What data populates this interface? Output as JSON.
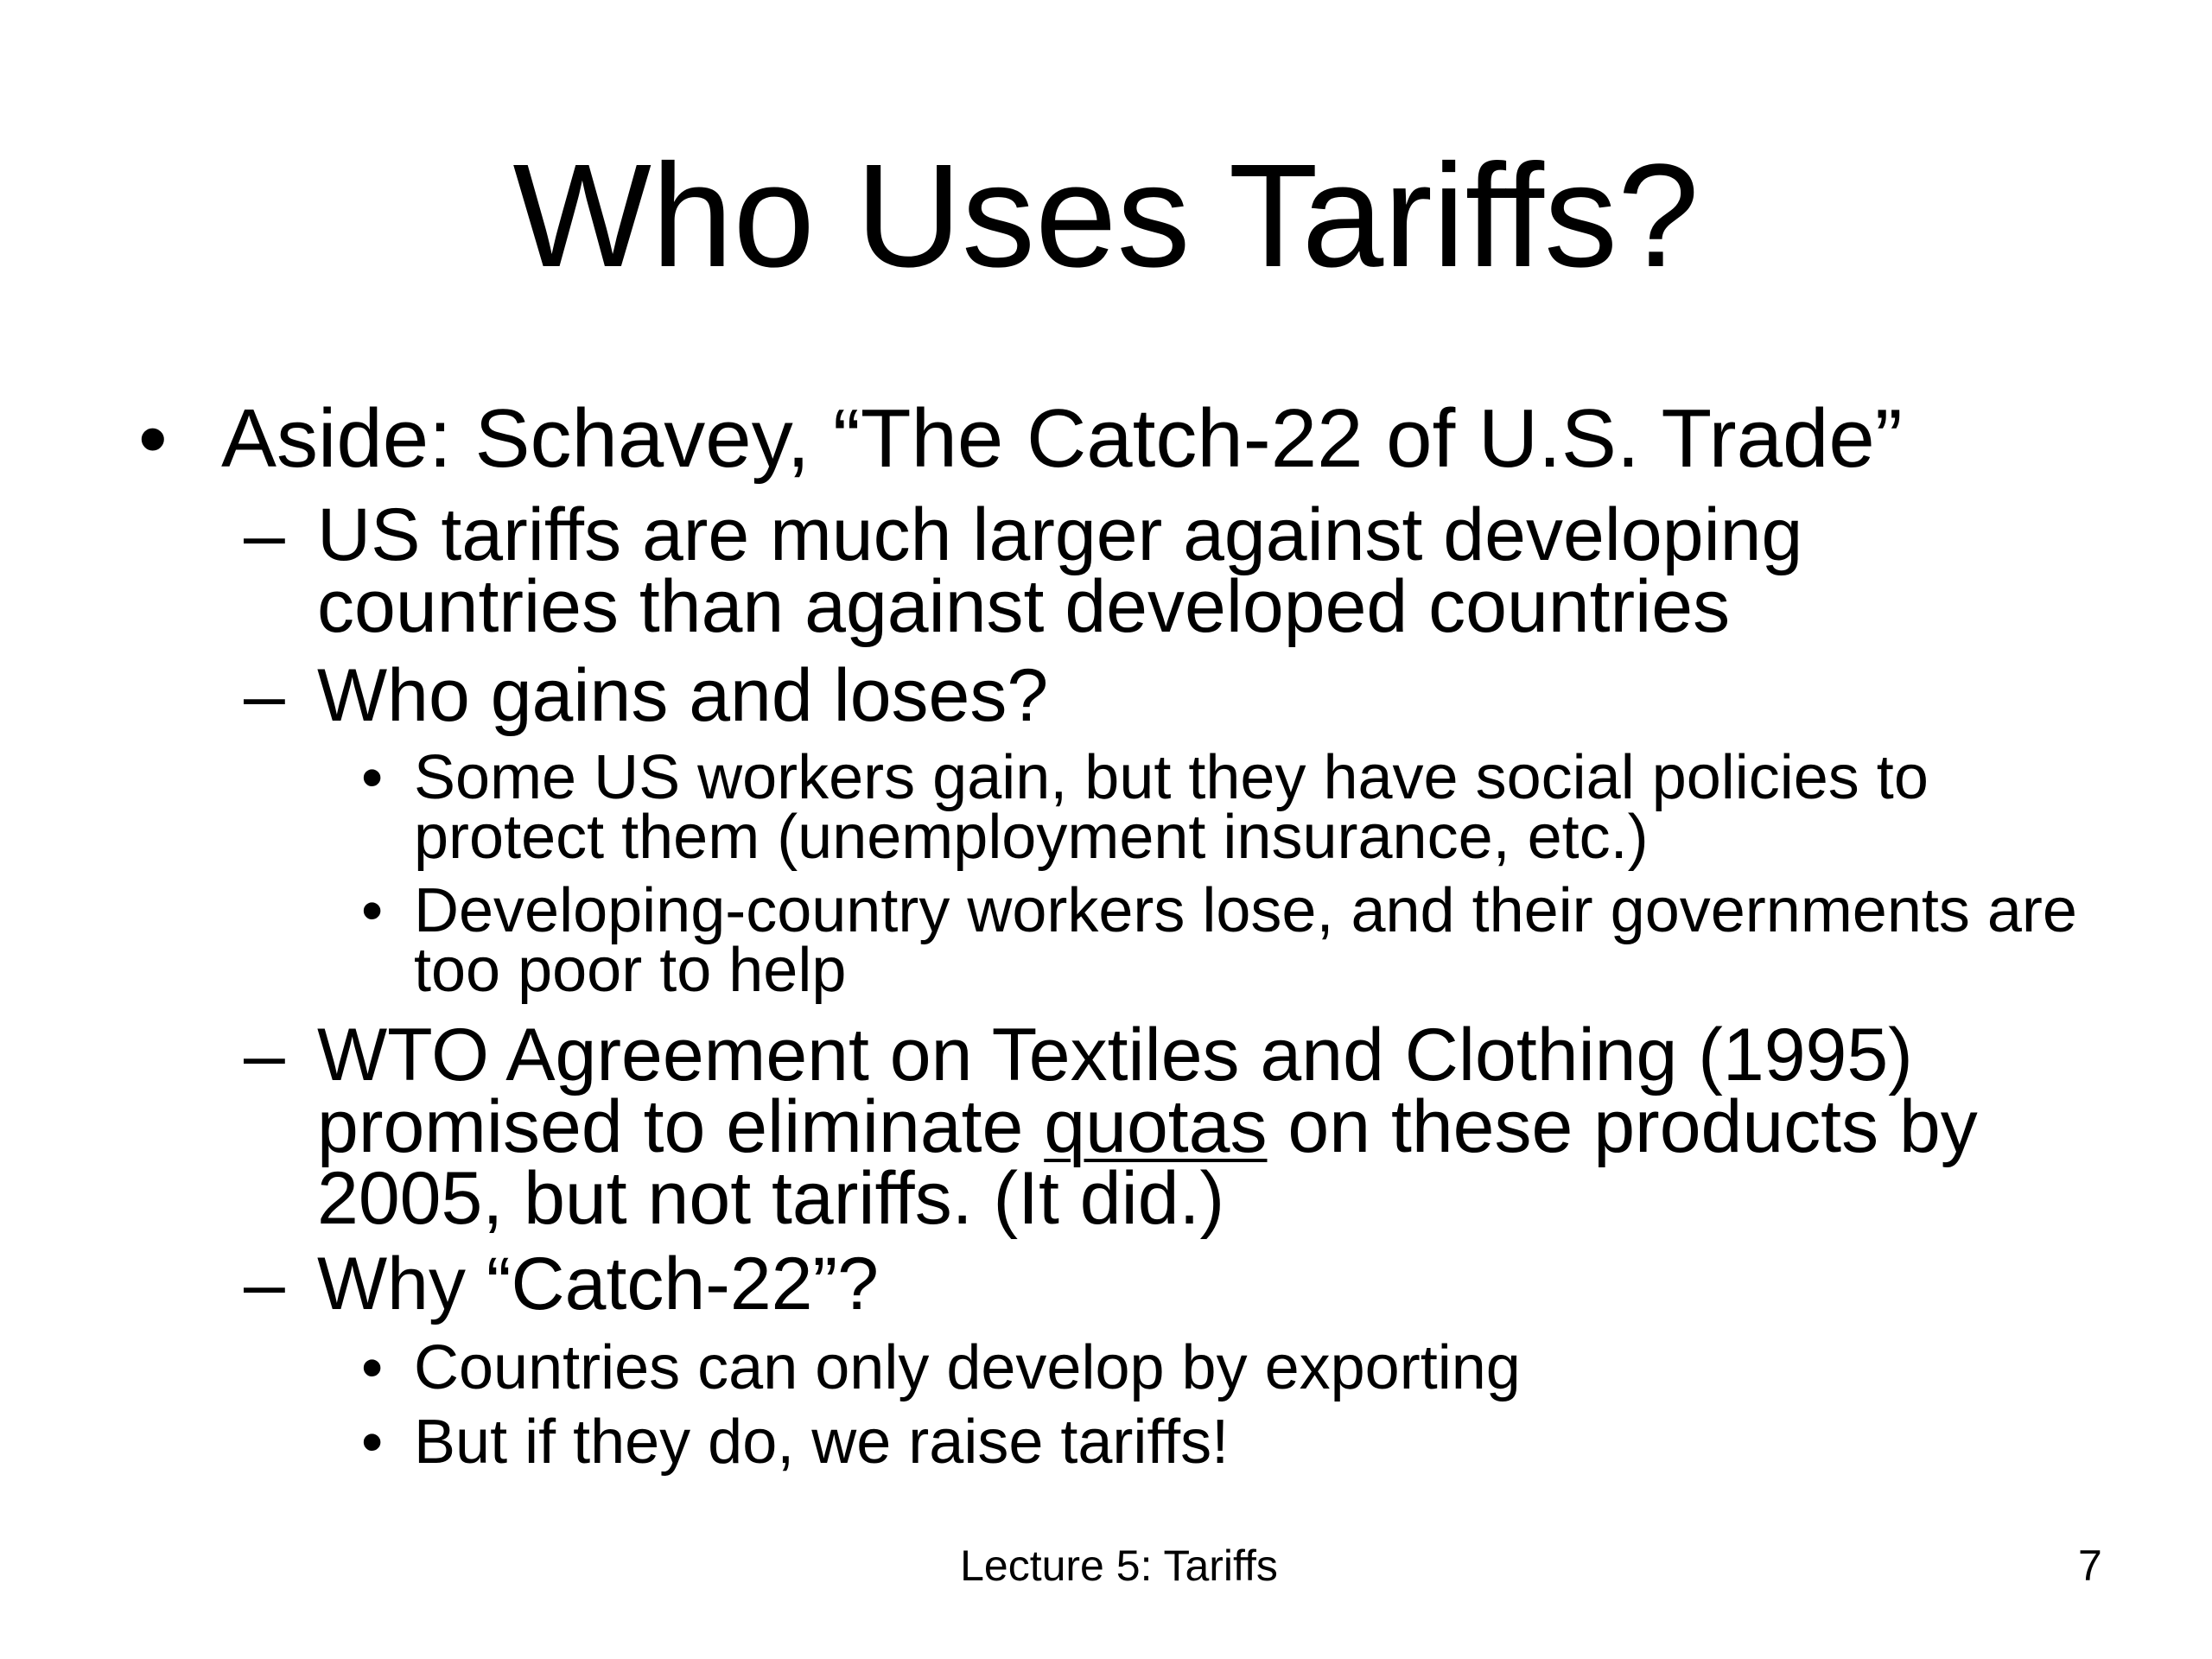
{
  "slide": {
    "title": "Who Uses Tariffs?",
    "bullets": {
      "b1": {
        "marker": "•",
        "text": "Aside:  Schavey, “The Catch-22 of U.S. Trade”"
      },
      "b2": {
        "marker": "–",
        "lines": [
          "US tariffs are much larger against developing",
          "countries than against developed countries"
        ]
      },
      "b3": {
        "marker": "–",
        "text": "Who gains and loses?"
      },
      "b4": {
        "marker": "•",
        "lines": [
          "Some US workers gain, but they have social policies to",
          "protect them (unemployment insurance, etc.)"
        ]
      },
      "b5": {
        "marker": "•",
        "lines": [
          "Developing-country workers lose, and their governments are",
          "too poor to help"
        ]
      },
      "b6": {
        "marker": "–",
        "line1": "WTO Agreement on Textiles and Clothing (1995)",
        "line2_pre": "promised to eliminate ",
        "line2_underlined": "quotas",
        "line2_post": " on these products by",
        "line3": "2005, but not tariffs.  (It did.)"
      },
      "b7": {
        "marker": "–",
        "text": "Why “Catch-22”?"
      },
      "b8": {
        "marker": "•",
        "text": "Countries can only develop by exporting"
      },
      "b9": {
        "marker": "•",
        "text": "But if they do, we raise tariffs!"
      }
    },
    "footer": {
      "center": "Lecture 5: Tariffs",
      "page_number": "7"
    }
  }
}
